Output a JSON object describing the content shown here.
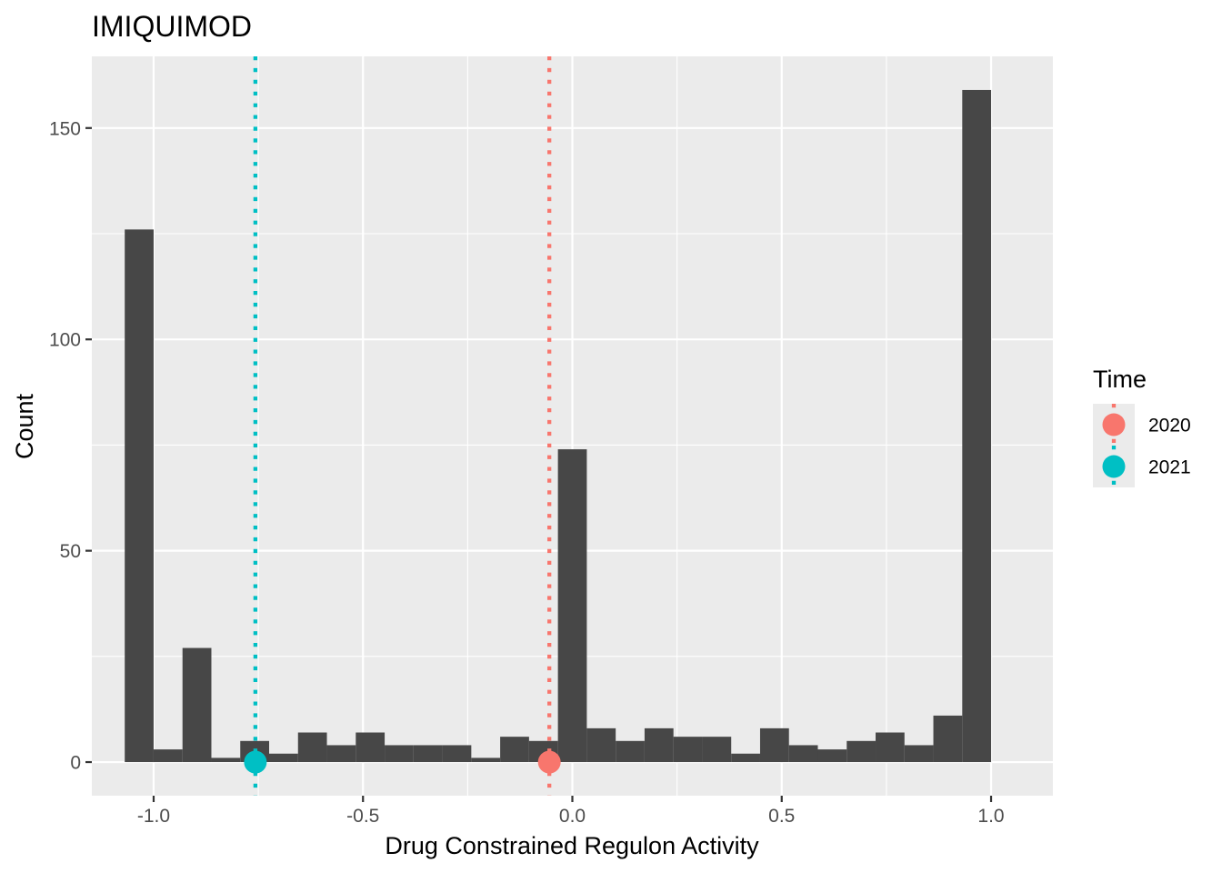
{
  "chart_data": {
    "type": "bar",
    "title": "IMIQUIMOD",
    "xlabel": "Drug Constrained Regulon Activity",
    "ylabel": "Count",
    "xlim": [
      -1.1476,
      1.1476
    ],
    "ylim": [
      -7.95,
      166.95
    ],
    "x_ticks": [
      -1.0,
      -0.5,
      0.0,
      0.5,
      1.0
    ],
    "x_tick_labels": [
      "-1.0",
      "-0.5",
      "0.0",
      "0.5",
      "1.0"
    ],
    "y_ticks": [
      0,
      50,
      100,
      150
    ],
    "y_tick_labels": [
      "0",
      "50",
      "100",
      "150"
    ],
    "grid": true,
    "bins": {
      "start": -1.069,
      "width": 0.06897,
      "counts": [
        126,
        3,
        27,
        1,
        5,
        2,
        7,
        4,
        7,
        4,
        4,
        4,
        1,
        6,
        5,
        74,
        8,
        5,
        8,
        6,
        6,
        2,
        8,
        4,
        3,
        5,
        7,
        4,
        11,
        159
      ]
    },
    "bar_color": "#474747",
    "series": [
      {
        "name": "2020",
        "x": -0.055,
        "y": 0,
        "color": "#F8766D"
      },
      {
        "name": "2021",
        "x": -0.757,
        "y": 0,
        "color": "#00BFC4"
      }
    ],
    "legend": {
      "title": "Time",
      "position": "right",
      "items": [
        {
          "label": "2020",
          "color": "#F8766D"
        },
        {
          "label": "2021",
          "color": "#00BFC4"
        }
      ]
    }
  }
}
